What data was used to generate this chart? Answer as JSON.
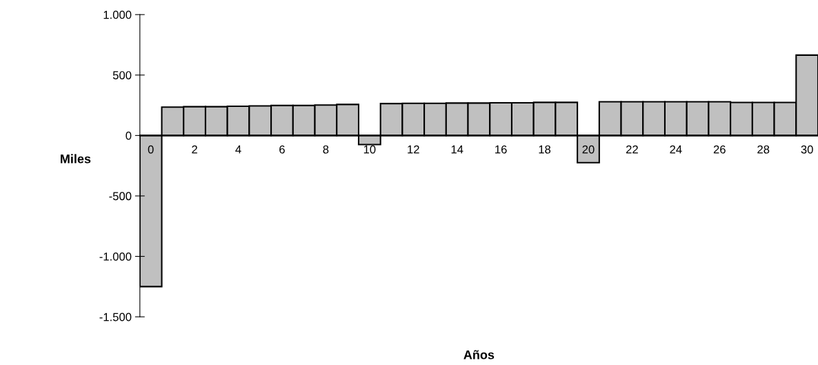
{
  "chart_data": {
    "type": "bar",
    "xlabel": "Años",
    "ylabel": "Miles",
    "categories": [
      "0",
      null,
      "2",
      null,
      "4",
      null,
      "6",
      null,
      "8",
      null,
      "10",
      null,
      "12",
      null,
      "14",
      null,
      "16",
      null,
      "18",
      null,
      "20",
      null,
      "22",
      null,
      "24",
      null,
      "26",
      null,
      "28",
      null,
      "30"
    ],
    "values": [
      -1250,
      235,
      238,
      238,
      242,
      245,
      248,
      248,
      252,
      257,
      -75,
      264,
      266,
      266,
      268,
      268,
      270,
      270,
      274,
      274,
      -225,
      279,
      279,
      279,
      279,
      279,
      279,
      273,
      273,
      273,
      665
    ],
    "color": "#c0c0c0",
    "ylim": [
      -1500,
      1000
    ],
    "yticks": [
      {
        "value": -1500,
        "label": "-1.500"
      },
      {
        "value": -1000,
        "label": "-1.000"
      },
      {
        "value": -500,
        "label": "-500"
      },
      0,
      500,
      {
        "value": 1000,
        "label": "1.000"
      }
    ],
    "grid": false,
    "legend": false
  }
}
